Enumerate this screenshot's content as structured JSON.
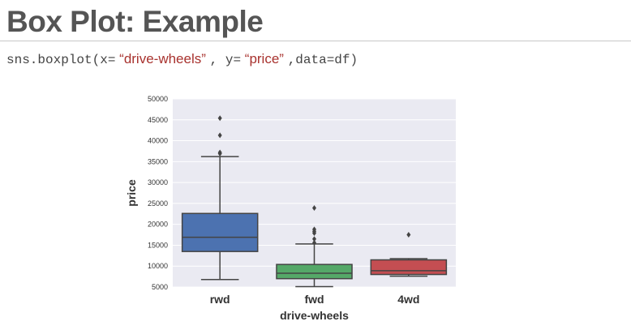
{
  "slide": {
    "title": "Box Plot: Example",
    "code": {
      "prefix": "sns.boxplot(x=",
      "x_arg": "“drive-wheels”",
      "middle": ", y=",
      "y_arg": "“price”",
      "suffix": ",data=df)"
    }
  },
  "chart_data": {
    "type": "box",
    "xlabel": "drive-wheels",
    "ylabel": "price",
    "ylim": [
      5000,
      50000
    ],
    "yticks": [
      5000,
      10000,
      15000,
      20000,
      25000,
      30000,
      35000,
      40000,
      45000,
      50000
    ],
    "grid": true,
    "categories": [
      "rwd",
      "fwd",
      "4wd"
    ],
    "boxes": [
      {
        "category": "rwd",
        "color": "#4c72b0",
        "whisker_low": 6800,
        "q1": 13500,
        "median": 16900,
        "q3": 22600,
        "whisker_high": 36200,
        "outliers": [
          36900,
          37200,
          41300,
          45400
        ]
      },
      {
        "category": "fwd",
        "color": "#55a868",
        "whisker_low": 5100,
        "q1": 7000,
        "median": 8300,
        "q3": 10400,
        "whisker_high": 15300,
        "outliers": [
          15600,
          16500,
          17900,
          18300,
          18800,
          23900
        ]
      },
      {
        "category": "4wd",
        "color": "#c44e52",
        "whisker_low": 7600,
        "q1": 8000,
        "median": 8900,
        "q3": 11500,
        "whisker_high": 11800,
        "outliers": [
          17500
        ]
      }
    ],
    "colors": {
      "plot_background": "#eaeaf2",
      "grid": "#ffffff",
      "lines": "#444444"
    }
  }
}
